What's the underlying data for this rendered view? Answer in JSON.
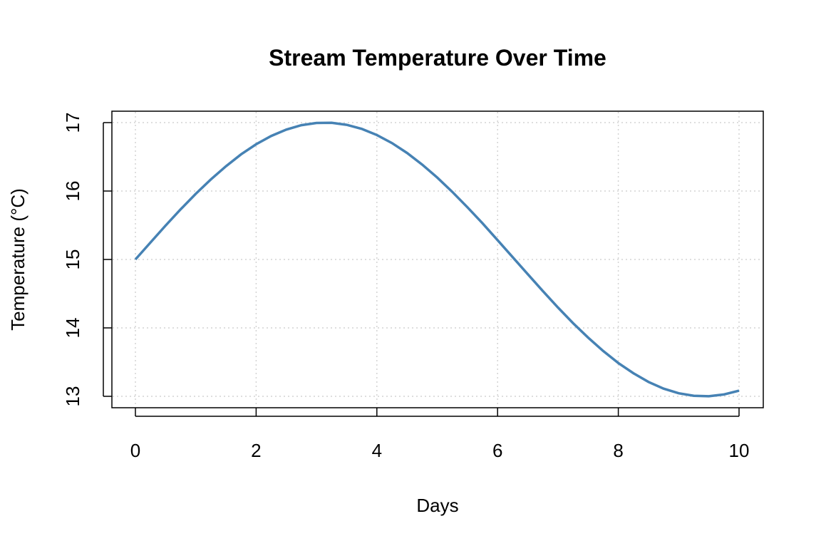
{
  "chart_data": {
    "type": "line",
    "title": "Stream Temperature Over Time",
    "xlabel": "Days",
    "ylabel": "Temperature (°C)",
    "xlim": [
      0,
      10
    ],
    "ylim": [
      13,
      17
    ],
    "x_ticks": [
      "0",
      "2",
      "4",
      "6",
      "8",
      "10"
    ],
    "y_ticks": [
      "13",
      "14",
      "15",
      "16",
      "17"
    ],
    "grid": true,
    "line_color": "#4682B4",
    "grid_color": "#D3D3D3",
    "series": [
      {
        "name": "Temperature",
        "x": [
          0,
          0.25,
          0.5,
          0.75,
          1,
          1.25,
          1.5,
          1.75,
          2,
          2.25,
          2.5,
          2.75,
          3,
          3.25,
          3.5,
          3.75,
          4,
          4.25,
          4.5,
          4.75,
          5,
          5.25,
          5.5,
          5.75,
          6,
          6.25,
          6.5,
          6.75,
          7,
          7.25,
          7.5,
          7.75,
          8,
          8.25,
          8.5,
          8.75,
          9,
          9.25,
          9.5,
          9.75,
          10
        ],
        "y": [
          15,
          15.249,
          15.495,
          15.733,
          15.959,
          16.17,
          16.363,
          16.535,
          16.683,
          16.805,
          16.898,
          16.962,
          16.995,
          16.997,
          16.968,
          16.908,
          16.819,
          16.701,
          16.556,
          16.387,
          16.197,
          15.987,
          15.763,
          15.529,
          15.282,
          15.033,
          14.784,
          14.539,
          14.298,
          14.069,
          13.857,
          13.662,
          13.486,
          13.337,
          13.21,
          13.113,
          13.045,
          13.008,
          13.001,
          13.027,
          13.082
        ]
      }
    ]
  }
}
